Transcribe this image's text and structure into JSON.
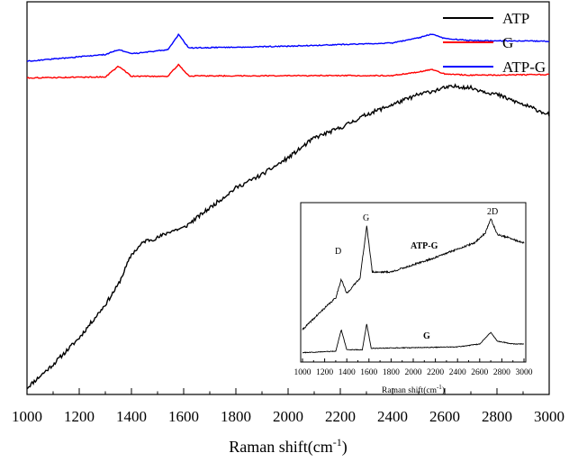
{
  "chart_data": {
    "type": "line",
    "xlabel_main": "Raman shift(cm",
    "xlabel_sup": "-1",
    "xlabel_end": ")",
    "xlim": [
      1000,
      3000
    ],
    "x_ticks": [
      "1000",
      "1200",
      "1400",
      "1600",
      "1800",
      "2000",
      "2200",
      "2400",
      "2600",
      "2800",
      "3000"
    ],
    "legend_position": "top-right",
    "series": [
      {
        "name": "ATP",
        "color": "#000000",
        "points": [
          [
            1000,
            0.02
          ],
          [
            1100,
            0.09
          ],
          [
            1200,
            0.17
          ],
          [
            1300,
            0.27
          ],
          [
            1350,
            0.33
          ],
          [
            1400,
            0.42
          ],
          [
            1450,
            0.46
          ],
          [
            1500,
            0.47
          ],
          [
            1550,
            0.49
          ],
          [
            1600,
            0.5
          ],
          [
            1650,
            0.53
          ],
          [
            1700,
            0.56
          ],
          [
            1800,
            0.62
          ],
          [
            1900,
            0.66
          ],
          [
            2000,
            0.71
          ],
          [
            2100,
            0.77
          ],
          [
            2200,
            0.8
          ],
          [
            2300,
            0.84
          ],
          [
            2400,
            0.87
          ],
          [
            2500,
            0.9
          ],
          [
            2600,
            0.92
          ],
          [
            2650,
            0.925
          ],
          [
            2700,
            0.92
          ],
          [
            2750,
            0.91
          ],
          [
            2800,
            0.9
          ],
          [
            2900,
            0.87
          ],
          [
            3000,
            0.84
          ]
        ]
      },
      {
        "name": "G",
        "color": "#ff0000",
        "points": [
          [
            1000,
            0.95
          ],
          [
            1300,
            0.953
          ],
          [
            1350,
            0.985
          ],
          [
            1400,
            0.955
          ],
          [
            1540,
            0.955
          ],
          [
            1580,
            0.99
          ],
          [
            1620,
            0.956
          ],
          [
            2400,
            0.957
          ],
          [
            2500,
            0.968
          ],
          [
            2550,
            0.975
          ],
          [
            2600,
            0.962
          ],
          [
            2700,
            0.958
          ],
          [
            3000,
            0.96
          ]
        ]
      },
      {
        "name": "ATP-G",
        "color": "#0000ff",
        "points": [
          [
            1000,
            1.0
          ],
          [
            1300,
            1.02
          ],
          [
            1350,
            1.035
          ],
          [
            1400,
            1.022
          ],
          [
            1540,
            1.035
          ],
          [
            1580,
            1.08
          ],
          [
            1620,
            1.04
          ],
          [
            2000,
            1.045
          ],
          [
            2400,
            1.055
          ],
          [
            2500,
            1.07
          ],
          [
            2550,
            1.082
          ],
          [
            2600,
            1.068
          ],
          [
            2700,
            1.062
          ],
          [
            3000,
            1.06
          ]
        ]
      }
    ],
    "inset": {
      "xlabel_main": "Raman shift(cm",
      "xlabel_sup": "-1",
      "xlabel_end": ")",
      "xlim": [
        1000,
        3000
      ],
      "x_ticks": [
        "1000",
        "1200",
        "1400",
        "1600",
        "1800",
        "2000",
        "2200",
        "2400",
        "2600",
        "2800",
        "3000"
      ],
      "series": [
        {
          "name": "ATP-G",
          "color": "#000000",
          "points": [
            [
              1000,
              0.2
            ],
            [
              1200,
              0.35
            ],
            [
              1300,
              0.42
            ],
            [
              1350,
              0.55
            ],
            [
              1400,
              0.45
            ],
            [
              1520,
              0.56
            ],
            [
              1580,
              0.92
            ],
            [
              1630,
              0.6
            ],
            [
              1800,
              0.6
            ],
            [
              2000,
              0.65
            ],
            [
              2200,
              0.7
            ],
            [
              2400,
              0.76
            ],
            [
              2550,
              0.8
            ],
            [
              2650,
              0.87
            ],
            [
              2700,
              0.97
            ],
            [
              2760,
              0.86
            ],
            [
              2850,
              0.84
            ],
            [
              3000,
              0.8
            ]
          ]
        },
        {
          "name": "G",
          "color": "#000000",
          "points": [
            [
              1000,
              0.04
            ],
            [
              1300,
              0.05
            ],
            [
              1350,
              0.2
            ],
            [
              1400,
              0.06
            ],
            [
              1540,
              0.06
            ],
            [
              1580,
              0.24
            ],
            [
              1620,
              0.07
            ],
            [
              2400,
              0.08
            ],
            [
              2600,
              0.1
            ],
            [
              2700,
              0.18
            ],
            [
              2760,
              0.12
            ],
            [
              2900,
              0.1
            ],
            [
              3000,
              0.1
            ]
          ]
        }
      ],
      "annotations": {
        "d_label": "D",
        "g_label": "G",
        "twod_label": "2D",
        "atpg_label": "ATP-G",
        "g_series_label": "G"
      }
    }
  }
}
